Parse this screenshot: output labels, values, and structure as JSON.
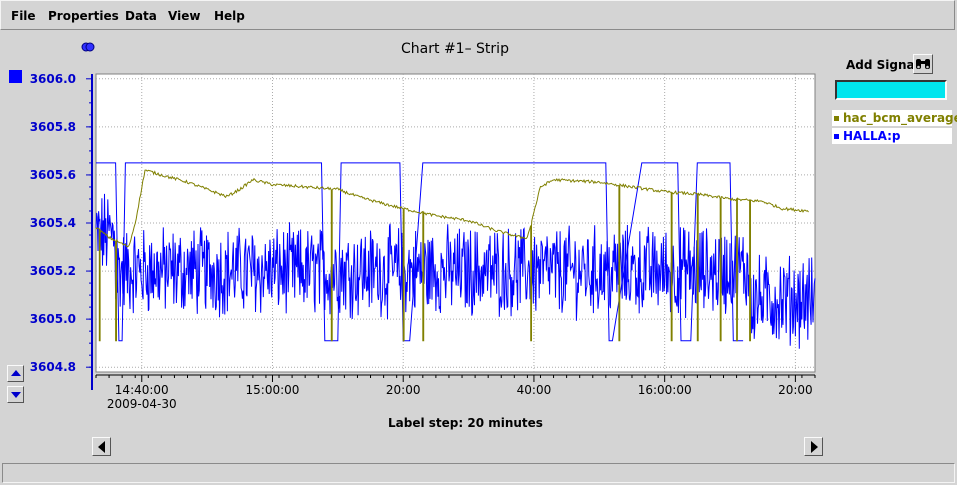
{
  "menu": {
    "file": "File",
    "properties": "Properties",
    "data": "Data",
    "view": "View",
    "help": "Help"
  },
  "chart_title": "Chart #1– Strip",
  "add_signal_label": "Add Signal",
  "label_step": "Label step: 20 minutes",
  "legend": [
    {
      "name": "hac_bcm_average",
      "color": "#808000"
    },
    {
      "name": "HALLA:p",
      "color": "#0000ff"
    }
  ],
  "colors": {
    "signal_input_bg": "#00e5ee",
    "axis": "#0000cc",
    "series1": "#808000",
    "series2": "#0000ff"
  },
  "chart_data": {
    "type": "line",
    "title": "Chart #1– Strip",
    "xlabel": "Label step: 20 minutes",
    "ylabel": "",
    "ylim": [
      3604.78,
      3606.02
    ],
    "y_ticks": [
      "3606.0",
      "3605.8",
      "3605.6",
      "3605.4",
      "3605.2",
      "3605.0",
      "3604.8"
    ],
    "x_ticks": [
      {
        "time": "14:40:00",
        "label": "14:40:00",
        "sublabel": "2009-04-30"
      },
      {
        "time": "15:00:00",
        "label": "15:00:00"
      },
      {
        "time": "15:20:00",
        "label": "20:00"
      },
      {
        "time": "15:40:00",
        "label": "40:00"
      },
      {
        "time": "16:00:00",
        "label": "16:00:00"
      },
      {
        "time": "16:20:00",
        "label": "20:00"
      }
    ],
    "x_range": [
      "14:33:00",
      "16:23:00"
    ],
    "grid": true,
    "series": [
      {
        "name": "hac_bcm_average",
        "color": "#808000",
        "trend": [
          [
            "14:33:00",
            3605.38
          ],
          [
            "14:35:00",
            3605.34
          ],
          [
            "14:38:00",
            3605.3
          ],
          [
            "14:39:00",
            3605.4
          ],
          [
            "14:40:30",
            3605.62
          ],
          [
            "14:43:00",
            3605.6
          ],
          [
            "14:47:00",
            3605.57
          ],
          [
            "14:50:00",
            3605.54
          ],
          [
            "14:53:00",
            3605.51
          ],
          [
            "14:55:00",
            3605.54
          ],
          [
            "14:57:00",
            3605.58
          ],
          [
            "15:00:00",
            3605.56
          ],
          [
            "15:05:00",
            3605.55
          ],
          [
            "15:10:00",
            3605.54
          ],
          [
            "15:13:00",
            3605.51
          ],
          [
            "15:17:00",
            3605.48
          ],
          [
            "15:20:00",
            3605.46
          ],
          [
            "15:25:00",
            3605.43
          ],
          [
            "15:30:00",
            3605.41
          ],
          [
            "15:34:00",
            3605.37
          ],
          [
            "15:38:00",
            3605.34
          ],
          [
            "15:39:00",
            3605.34
          ],
          [
            "15:41:00",
            3605.55
          ],
          [
            "15:43:00",
            3605.58
          ],
          [
            "15:50:00",
            3605.57
          ],
          [
            "15:55:00",
            3605.55
          ],
          [
            "16:00:00",
            3605.53
          ],
          [
            "16:05:00",
            3605.52
          ],
          [
            "16:10:00",
            3605.5
          ],
          [
            "16:15:00",
            3605.49
          ],
          [
            "16:18:00",
            3605.46
          ],
          [
            "16:22:00",
            3605.45
          ]
        ],
        "dropouts": [
          "14:33:30",
          "14:36:00",
          "15:09:00",
          "15:20:00",
          "15:23:00",
          "15:39:30",
          "15:53:00",
          "16:01:00",
          "16:05:00",
          "16:08:30",
          "16:11:00",
          "16:13:00"
        ],
        "dropout_value": 3604.91
      },
      {
        "name": "HALLA:p",
        "color": "#0000ff",
        "mean": 3605.2,
        "range": [
          3604.78,
          3605.65
        ],
        "steps": [
          [
            "14:33:00",
            3605.65
          ],
          [
            "14:36:00",
            3605.65
          ],
          [
            "14:36:30",
            3604.91
          ],
          [
            "14:37:00",
            3604.91
          ],
          [
            "14:37:30",
            3605.65
          ],
          [
            "15:07:30",
            3605.65
          ],
          [
            "15:08:00",
            3604.91
          ],
          [
            "15:10:00",
            3604.91
          ],
          [
            "15:10:30",
            3605.65
          ],
          [
            "15:19:30",
            3605.65
          ],
          [
            "15:20:00",
            3604.91
          ],
          [
            "15:21:00",
            3604.91
          ],
          [
            "15:23:00",
            3605.65
          ],
          [
            "15:51:00",
            3605.65
          ],
          [
            "15:51:30",
            3604.91
          ],
          [
            "15:52:00",
            3604.91
          ],
          [
            "15:56:30",
            3605.65
          ],
          [
            "16:02:00",
            3605.65
          ],
          [
            "16:02:30",
            3604.91
          ],
          [
            "16:04:00",
            3604.91
          ],
          [
            "16:05:00",
            3605.65
          ],
          [
            "16:10:00",
            3605.65
          ],
          [
            "16:10:30",
            3604.91
          ],
          [
            "16:12:00",
            3604.91
          ]
        ]
      }
    ]
  }
}
